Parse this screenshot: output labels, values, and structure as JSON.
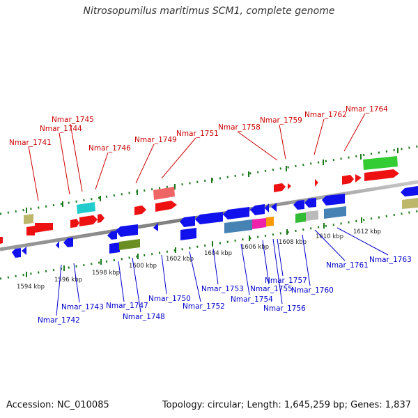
{
  "title": "Nitrosopumilus maritimus SCM1, complete genome",
  "footer": {
    "accession": "Accession: NC_010085",
    "summary": "Topology: circular; Length: 1,645,259 bp; Genes: 1,837"
  },
  "colors": {
    "forward_label": "#cc0000",
    "reverse_label": "#0000cc",
    "backbone": "#888888",
    "tick": "#1a7a1a"
  },
  "scale_labels": [
    "1594 kbp",
    "1596 kbp",
    "1598 kbp",
    "1600 kbp",
    "1602 kbp",
    "1604 kbp",
    "1606 kbp",
    "1608 kbp",
    "1610 kbp",
    "1612 kbp"
  ],
  "forward_genes": [
    "Nmar_1741",
    "Nmar_1744",
    "Nmar_1745",
    "Nmar_1746",
    "Nmar_1749",
    "Nmar_1751",
    "Nmar_1758",
    "Nmar_1759",
    "Nmar_1762",
    "Nmar_1764"
  ],
  "reverse_genes": [
    "Nmar_1742",
    "Nmar_1743",
    "Nmar_1747",
    "Nmar_1748",
    "Nmar_1750",
    "Nmar_1752",
    "Nmar_1753",
    "Nmar_1754",
    "Nmar_1755",
    "Nmar_1756",
    "Nmar_1757",
    "Nmar_1760",
    "Nmar_1761",
    "Nmar_1763"
  ]
}
